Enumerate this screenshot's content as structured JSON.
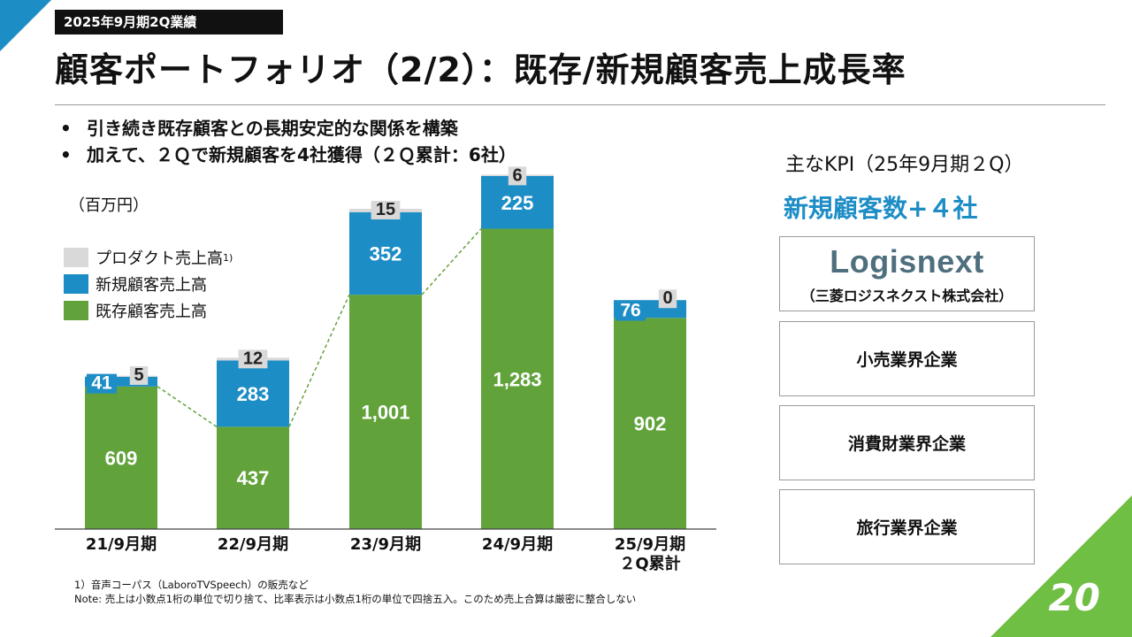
{
  "header": {
    "tag": "2025年9月期2Q業績",
    "title": "顧客ポートフォリオ（2/2）：既存/新規顧客売上成長率"
  },
  "bullets": [
    "引き続き既存顧客との長期安定的な関係を構築",
    "加えて、２Ｑで新規顧客を4社獲得（２Ｑ累計：6社）"
  ],
  "unit_label": "（百万円）",
  "legend": [
    {
      "label": "プロダクト売上高",
      "sup": "1)",
      "color": "#d9d9d9"
    },
    {
      "label": "新規顧客売上高",
      "sup": "",
      "color": "#1d8dc6"
    },
    {
      "label": "既存顧客売上高",
      "sup": "",
      "color": "#61a33a"
    }
  ],
  "chart_data": {
    "type": "bar",
    "stacked": true,
    "categories": [
      "21/9月期",
      "22/9月期",
      "23/9月期",
      "24/9月期",
      "25/9月期\n２Q累計"
    ],
    "series": [
      {
        "name": "既存顧客売上高",
        "values": [
          609,
          437,
          1001,
          1283,
          902
        ],
        "labels": [
          "609",
          "437",
          "1,001",
          "1,283",
          "902"
        ],
        "color": "#61a33a"
      },
      {
        "name": "新規顧客売上高",
        "values": [
          41,
          283,
          352,
          225,
          76
        ],
        "labels": [
          "41",
          "283",
          "352",
          "225",
          "76"
        ],
        "color": "#1d8dc6"
      },
      {
        "name": "プロダクト売上高",
        "values": [
          5,
          12,
          15,
          6,
          0
        ],
        "labels": [
          "5",
          "12",
          "15",
          "6",
          "0"
        ],
        "color": "#d9d9d9"
      }
    ],
    "connector_color": "#61a33a",
    "ylabel": "（百万円）",
    "ylim": [
      0,
      1600
    ],
    "grid": false
  },
  "notes": [
    "1）音声コーパス（LaboroTVSpeech）の販売など",
    "Note: 売上は小数点1桁の単位で切り捨て、比率表示は小数点1桁の単位で四捨五入。このため売上合算は厳密に整合しない"
  ],
  "kpi": {
    "heading": "主なKPI（25年9月期２Q）",
    "highlight": "新規顧客数+４社",
    "highlight_color": "#1d8dc6",
    "customers": [
      {
        "logo": "Logisnext",
        "label": "（三菱ロジスネクスト株式会社）"
      },
      {
        "label": "小売業界企業"
      },
      {
        "label": "消費財業界企業"
      },
      {
        "label": "旅行業界企業"
      }
    ]
  },
  "page_number": "20"
}
